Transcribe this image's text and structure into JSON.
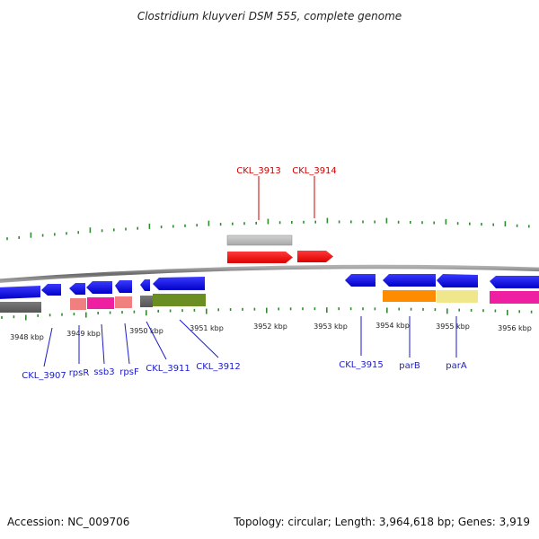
{
  "title": "Clostridium kluyveri DSM 555, complete genome",
  "footer": {
    "accession": "Accession: NC_009706",
    "topology": "Topology: circular; Length: 3,964,618 bp; Genes: 3,919"
  },
  "colors": {
    "backbone": "#808080",
    "tick": "#2e8b2e",
    "gene_label_top": "#cc0000",
    "gene_label_bottom": "#1a1acc"
  },
  "kbp_labels": [
    "3948 kbp",
    "3949 kbp",
    "3950 kbp",
    "3951 kbp",
    "3952 kbp",
    "3953 kbp",
    "3954 kbp",
    "3955 kbp",
    "3956 kbp"
  ],
  "gene_labels_top": [
    "CKL_3913",
    "CKL_3914"
  ],
  "gene_labels_bottom": [
    "CKL_3907",
    "rpsR",
    "ssb3",
    "rpsF",
    "CKL_3911",
    "CKL_3912",
    "CKL_3915",
    "parB",
    "parA"
  ]
}
